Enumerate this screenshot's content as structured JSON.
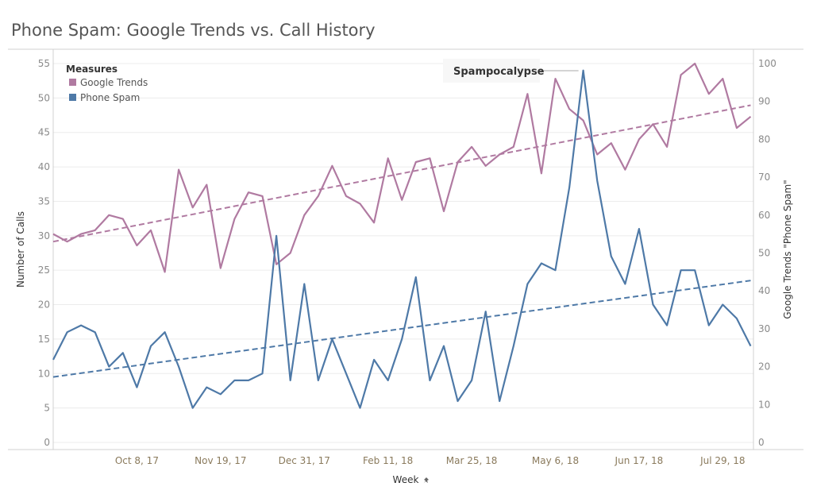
{
  "title": "Phone Spam: Google Trends vs. Call History",
  "colors": {
    "google_trends": "#b07aa1",
    "phone_spam": "#4e79a7",
    "grid": "#ececec",
    "axis": "#d0d0d0"
  },
  "chart_data": {
    "type": "line",
    "title": "Phone Spam: Google Trends vs. Call History",
    "xlabel": "Week",
    "xlabel_icon": "pin-icon",
    "ylabel_left": "Number of Calls",
    "ylabel_right": "Google Trends \"Phone Spam\"",
    "ylim_left": [
      0,
      55
    ],
    "ylim_right": [
      0,
      100
    ],
    "yticks_left": [
      "0",
      "5",
      "10",
      "15",
      "20",
      "25",
      "30",
      "35",
      "40",
      "45",
      "50",
      "55"
    ],
    "yticks_right": [
      "0",
      "10",
      "20",
      "30",
      "40",
      "50",
      "60",
      "70",
      "80",
      "90",
      "100"
    ],
    "x_tick_labels": [
      "Oct 8, 17",
      "Nov 19, 17",
      "Dec 31, 17",
      "Feb 11, 18",
      "Mar 25, 18",
      "May 6, 18",
      "Jun 17, 18",
      "Jul 29, 18"
    ],
    "x_tick_index": [
      6,
      12,
      18,
      24,
      30,
      36,
      42,
      48
    ],
    "x_range": [
      0,
      50.2
    ],
    "grid": true,
    "legend": {
      "title": "Measures",
      "position": "top-left",
      "entries": [
        "Google Trends",
        "Phone Spam"
      ]
    },
    "annotation": {
      "text": "Spampocalypse",
      "x_index": 38
    },
    "series": [
      {
        "name": "Google Trends",
        "axis": "right",
        "values": [
          55,
          53,
          55,
          56,
          60,
          59,
          52,
          56,
          45,
          72,
          62,
          68,
          46,
          59,
          66,
          65,
          47,
          50,
          60,
          65,
          73,
          65,
          63,
          58,
          75,
          64,
          74,
          75,
          61,
          74,
          78,
          73,
          76,
          78,
          92,
          71,
          96,
          88,
          85,
          76,
          79,
          72,
          80,
          84,
          78,
          97,
          100,
          92,
          96,
          83,
          86
        ]
      },
      {
        "name": "Phone Spam",
        "axis": "left",
        "values": [
          12,
          16,
          17,
          16,
          11,
          13,
          8,
          14,
          16,
          11,
          5,
          8,
          7,
          9,
          9,
          10,
          30,
          9,
          23,
          9,
          15,
          10,
          5,
          12,
          9,
          15,
          24,
          9,
          14,
          6,
          9,
          19,
          6,
          14,
          23,
          26,
          25,
          37,
          54,
          38,
          27,
          23,
          31,
          20,
          17,
          25,
          25,
          17,
          20,
          18,
          14
        ]
      }
    ],
    "trendlines": [
      {
        "name": "Google Trends",
        "axis": "right",
        "start": 53,
        "end": 89
      },
      {
        "name": "Phone Spam",
        "axis": "left",
        "start": 9.5,
        "end": 23.5
      }
    ]
  }
}
